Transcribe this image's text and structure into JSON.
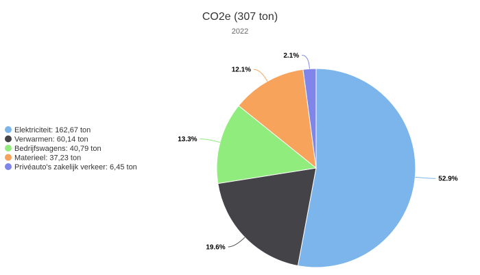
{
  "chart_data": {
    "type": "pie",
    "title": "CO2e (307 ton)",
    "subtitle": "2022",
    "legend_position": "left",
    "slices": [
      {
        "legend": "Elektriciteit: 162,67 ton",
        "value": 162.67,
        "percent_label": "52.9%",
        "color": "#7cb5ec"
      },
      {
        "legend": "Verwarmen: 60,14 ton",
        "value": 60.14,
        "percent_label": "19.6%",
        "color": "#434348"
      },
      {
        "legend": "Bedrijfswagens: 40,79 ton",
        "value": 40.79,
        "percent_label": "13.3%",
        "color": "#90ed7d"
      },
      {
        "legend": "Materieel: 37,23 ton",
        "value": 37.23,
        "percent_label": "12.1%",
        "color": "#f7a35c"
      },
      {
        "legend": "Privéauto's zakelijk verkeer: 6,45 ton",
        "value": 6.45,
        "percent_label": "2.1%",
        "color": "#8085e9"
      }
    ]
  }
}
